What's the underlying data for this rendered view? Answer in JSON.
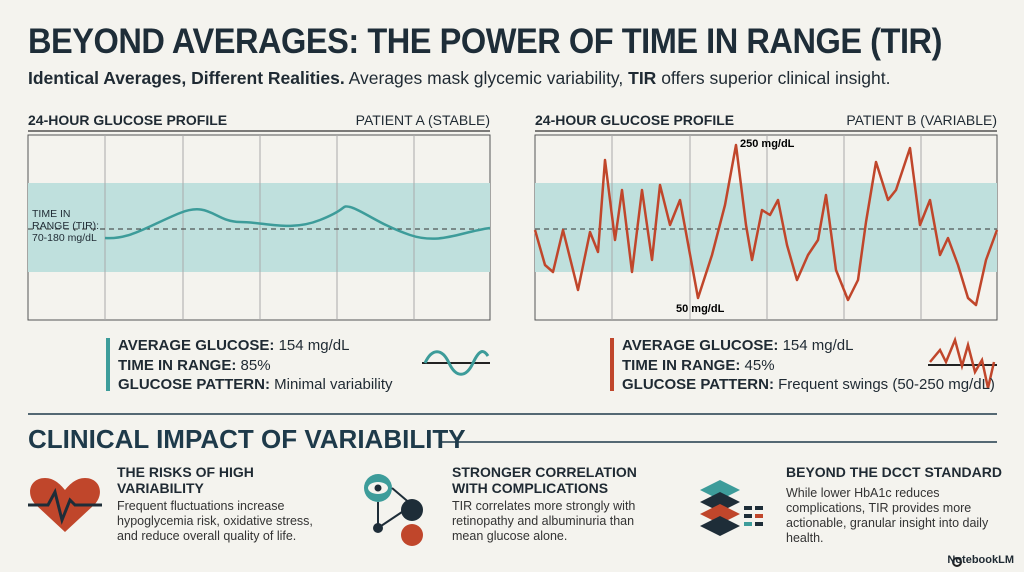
{
  "header": {
    "title": "BEYOND AVERAGES: THE POWER OF TIME IN RANGE (TIR)",
    "subtitle": {
      "lead": "Identical Averages, Different Realities.",
      "middle": "Averages mask glycemic variability,",
      "emphasis": "TIR",
      "tail": "offers superior clinical insight."
    }
  },
  "panels": [
    {
      "heading": "24-HOUR GLUCOSE PROFILE",
      "patient": "PATIENT A (STABLE)",
      "band_label": "TIME IN RANGE (TIR):",
      "band_range": "70-180 mg/dL",
      "stats": [
        {
          "label": "AVERAGE GLUCOSE:",
          "value": "154 mg/dL"
        },
        {
          "label": "TIME IN RANGE:",
          "value": "85%"
        },
        {
          "label": "GLUCOSE PATTERN:",
          "value": "Minimal variability"
        }
      ]
    },
    {
      "heading": "24-HOUR GLUCOSE PROFILE",
      "patient": "PATIENT B (VARIABLE)",
      "annotations": [
        "250 mg/dL",
        "50 mg/dL"
      ],
      "stats": [
        {
          "label": "AVERAGE GLUCOSE:",
          "value": "154 mg/dL"
        },
        {
          "label": "TIME IN RANGE:",
          "value": "45%"
        },
        {
          "label": "GLUCOSE PATTERN:",
          "value": "Frequent swings (50-250 mg/dL)"
        }
      ]
    }
  ],
  "impact": {
    "title": "CLINICAL IMPACT OF VARIABILITY",
    "items": [
      {
        "title": "THE RISKS OF HIGH VARIABILITY",
        "body": "Frequent fluctuations increase hypoglycemia risk, oxidative stress, and reduce overall quality of life."
      },
      {
        "title": "STRONGER CORRELATION WITH COMPLICATIONS",
        "body": "TIR correlates more strongly with retinopathy and albuminuria than mean glucose alone."
      },
      {
        "title": "BEYOND THE DCCT STANDARD",
        "body": "While lower HbA1c reduces complications, TIR provides more actionable, granular insight into daily health."
      }
    ]
  },
  "footer": {
    "brand": "NotebookLM"
  }
}
